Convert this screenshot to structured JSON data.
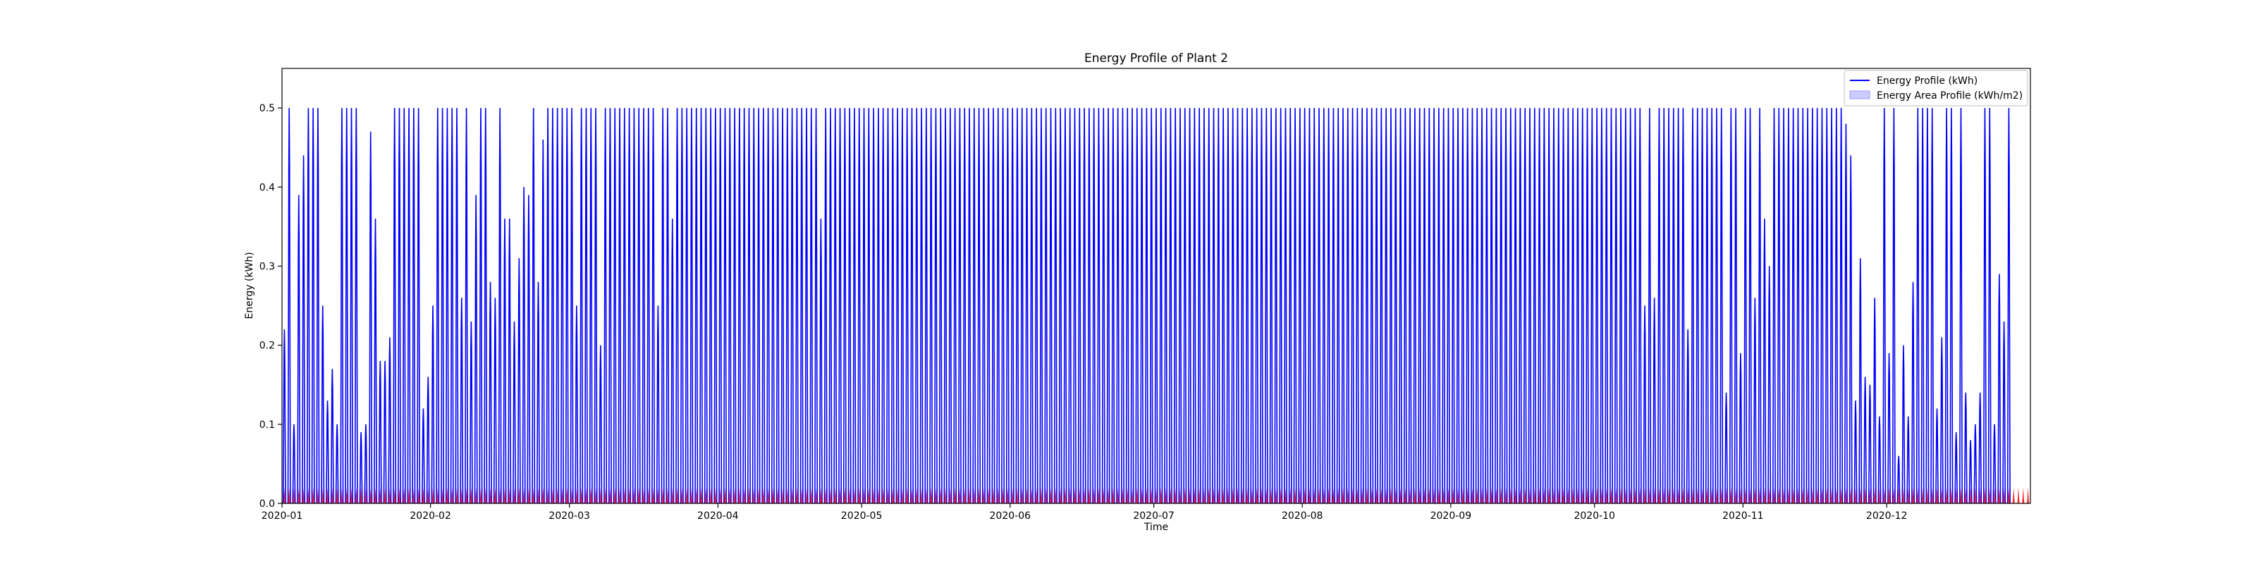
{
  "chart_data": {
    "type": "line",
    "title": "Energy Profile of Plant 2",
    "xlabel": "Time",
    "ylabel": "Energy (kWh)",
    "x_range": [
      "2020-01-01",
      "2020-12-31"
    ],
    "ylim": [
      0,
      0.55
    ],
    "x_ticks": [
      "2020-01",
      "2020-02",
      "2020-03",
      "2020-04",
      "2020-05",
      "2020-06",
      "2020-07",
      "2020-08",
      "2020-09",
      "2020-10",
      "2020-11",
      "2020-12"
    ],
    "y_ticks": [
      "0.0",
      "0.1",
      "0.2",
      "0.3",
      "0.4",
      "0.5"
    ],
    "grid": false,
    "legend_position": "top-right",
    "series": [
      {
        "name": "Energy Profile (kWh)",
        "style": "line",
        "color": "#0000ff",
        "x_start": "2020-01-01",
        "x_end": "2020-12-31",
        "daily_peak_approx": [
          0.22,
          0.5,
          0.1,
          0.39,
          0.44,
          0.5,
          0.5,
          0.5,
          0.25,
          0.13,
          0.17,
          0.1,
          0.5,
          0.5,
          0.5,
          0.5,
          0.09,
          0.1,
          0.47,
          0.36,
          0.18,
          0.18,
          0.21,
          0.5,
          0.5,
          0.5,
          0.5,
          0.5,
          0.5,
          0.12,
          0.16,
          0.25,
          0.5,
          0.5,
          0.5,
          0.5,
          0.5,
          0.26,
          0.5,
          0.23,
          0.39,
          0.5,
          0.5,
          0.28,
          0.26,
          0.5,
          0.36,
          0.36,
          0.23,
          0.31,
          0.4,
          0.39,
          0.5,
          0.28,
          0.46,
          0.5,
          0.5,
          0.5,
          0.5,
          0.5,
          0.5,
          0.25,
          0.5,
          0.5,
          0.5,
          0.5,
          0.2,
          0.5,
          0.5,
          0.5,
          0.5,
          0.5,
          0.5,
          0.5,
          0.5,
          0.5,
          0.5,
          0.5,
          0.25,
          0.5,
          0.5,
          0.36,
          0.5,
          0.5,
          0.5,
          0.5,
          0.5,
          0.5,
          0.5,
          0.5,
          0.5,
          0.5,
          0.5,
          0.5,
          0.5,
          0.5,
          0.5,
          0.5,
          0.5,
          0.5,
          0.5,
          0.5,
          0.5,
          0.5,
          0.5,
          0.5,
          0.5,
          0.5,
          0.5,
          0.5,
          0.5,
          0.5,
          0.36,
          0.5,
          0.5,
          0.5,
          0.5,
          0.5,
          0.5,
          0.5,
          0.5,
          0.5,
          0.5,
          0.5,
          0.5,
          0.5,
          0.5,
          0.5,
          0.5,
          0.5,
          0.5,
          0.5,
          0.5,
          0.5,
          0.5,
          0.5,
          0.5,
          0.5,
          0.5,
          0.5,
          0.5,
          0.5,
          0.5,
          0.5,
          0.5,
          0.5,
          0.5,
          0.5,
          0.5,
          0.5,
          0.5,
          0.5,
          0.5,
          0.5,
          0.5,
          0.5,
          0.5,
          0.5,
          0.5,
          0.5,
          0.5,
          0.5,
          0.5,
          0.5,
          0.5,
          0.5,
          0.5,
          0.5,
          0.5,
          0.5,
          0.5,
          0.5,
          0.5,
          0.5,
          0.5,
          0.5,
          0.5,
          0.5,
          0.5,
          0.5,
          0.5,
          0.5,
          0.5,
          0.5,
          0.5,
          0.5,
          0.5,
          0.5,
          0.5,
          0.5,
          0.5,
          0.5,
          0.5,
          0.5,
          0.5,
          0.5,
          0.5,
          0.5,
          0.5,
          0.5,
          0.5,
          0.5,
          0.5,
          0.5,
          0.5,
          0.5,
          0.5,
          0.5,
          0.5,
          0.5,
          0.5,
          0.5,
          0.5,
          0.5,
          0.5,
          0.5,
          0.5,
          0.5,
          0.5,
          0.5,
          0.5,
          0.5,
          0.5,
          0.5,
          0.5,
          0.5,
          0.5,
          0.5,
          0.5,
          0.5,
          0.5,
          0.5,
          0.5,
          0.5,
          0.5,
          0.5,
          0.5,
          0.5,
          0.5,
          0.5,
          0.5,
          0.5,
          0.5,
          0.5,
          0.5,
          0.5,
          0.5,
          0.5,
          0.5,
          0.5,
          0.5,
          0.5,
          0.5,
          0.5,
          0.5,
          0.5,
          0.5,
          0.5,
          0.5,
          0.5,
          0.5,
          0.5,
          0.5,
          0.5,
          0.5,
          0.5,
          0.5,
          0.5,
          0.5,
          0.5,
          0.5,
          0.5,
          0.5,
          0.5,
          0.5,
          0.5,
          0.5,
          0.5,
          0.5,
          0.5,
          0.5,
          0.5,
          0.5,
          0.5,
          0.25,
          0.5,
          0.26,
          0.5,
          0.5,
          0.5,
          0.5,
          0.5,
          0.5,
          0.22,
          0.5,
          0.5,
          0.5,
          0.5,
          0.5,
          0.5,
          0.5,
          0.14,
          0.5,
          0.5,
          0.19,
          0.5,
          0.5,
          0.26,
          0.5,
          0.36,
          0.3,
          0.5,
          0.5,
          0.5,
          0.5,
          0.5,
          0.5,
          0.5,
          0.5,
          0.5,
          0.5,
          0.5,
          0.5,
          0.5,
          0.5,
          0.5,
          0.48,
          0.44,
          0.13,
          0.31,
          0.16,
          0.15,
          0.26,
          0.11,
          0.5,
          0.19,
          0.5,
          0.06,
          0.2,
          0.11,
          0.28,
          0.5,
          0.5,
          0.5,
          0.5,
          0.12,
          0.21,
          0.5,
          0.5,
          0.09,
          0.5,
          0.14,
          0.08,
          0.1,
          0.14,
          0.5,
          0.5,
          0.1,
          0.29,
          0.23,
          0.5
        ]
      },
      {
        "name": "Energy Area Profile (kWh/m2)",
        "style": "area",
        "color": "#ff0000",
        "legend_swatch_color": "#ccccff",
        "x_start": "2020-01-01",
        "x_end": "2020-12-31",
        "daily_peak_approx": 0.02
      }
    ]
  }
}
